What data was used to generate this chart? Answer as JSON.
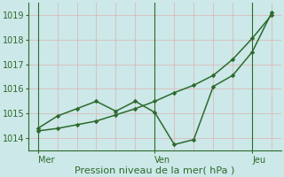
{
  "title": "",
  "xlabel": "Pression niveau de la mer( hPa )",
  "ylim": [
    1013.5,
    1019.5
  ],
  "xlim": [
    -0.5,
    12.5
  ],
  "background_color": "#cce8e8",
  "line_color": "#2d6a2d",
  "tick_label_color": "#2d6a2d",
  "xlabel_color": "#2d6a2d",
  "yticks": [
    1014,
    1015,
    1016,
    1017,
    1018,
    1019
  ],
  "xtick_positions": [
    0,
    6,
    11
  ],
  "xtick_labels": [
    "Mer",
    "Ven",
    "Jeu"
  ],
  "vline_positions": [
    0,
    6,
    11
  ],
  "pink_vlines": [
    1,
    2,
    3,
    4,
    5,
    7,
    8,
    9,
    10,
    12
  ],
  "pink_hlines": [
    1014,
    1015,
    1016,
    1017,
    1018,
    1019
  ],
  "line1_x": [
    0,
    1,
    2,
    3,
    4,
    5,
    6,
    7,
    8,
    9,
    10,
    11,
    12
  ],
  "line1_y": [
    1014.3,
    1014.4,
    1014.55,
    1014.7,
    1014.95,
    1015.2,
    1015.5,
    1015.85,
    1016.15,
    1016.55,
    1017.2,
    1018.05,
    1019.0
  ],
  "line2_x": [
    0,
    1,
    2,
    3,
    4,
    5,
    6,
    7,
    8,
    9,
    10,
    11,
    12
  ],
  "line2_y": [
    1014.4,
    1014.9,
    1015.2,
    1015.5,
    1015.1,
    1015.5,
    1015.05,
    1013.75,
    1013.95,
    1016.1,
    1016.55,
    1017.5,
    1019.1
  ],
  "marker": "D",
  "markersize": 2.8,
  "linewidth": 1.1,
  "fontsize_ticks": 7,
  "fontsize_xlabel": 8,
  "pink_color": "#e0b0b0",
  "pink_lw": 0.5,
  "vline_lw": 0.8
}
